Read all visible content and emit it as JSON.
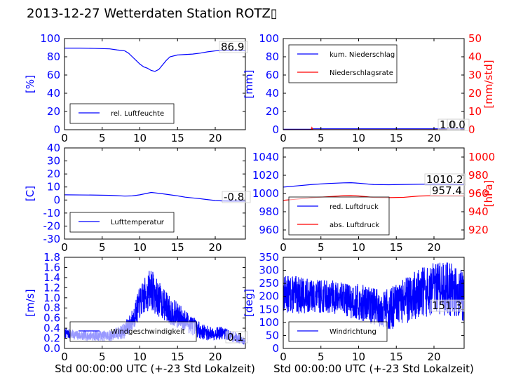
{
  "title": "2013-12-27 Wetterdaten Station ROTZ▯",
  "colors": {
    "blue": "#0000ff",
    "red": "#ff0000",
    "black": "#000000"
  },
  "chart_data": [
    {
      "type": "line",
      "ylabel": "[%]",
      "xlim": [
        0,
        24
      ],
      "ylim": [
        0,
        100
      ],
      "xticks": [
        0,
        5,
        10,
        15,
        20
      ],
      "yticks": [
        0,
        20,
        40,
        60,
        80,
        100
      ],
      "legend": "lower-left",
      "annotation": "86.9",
      "series": [
        {
          "name": "rel. Luftfeuchte",
          "color": "#0000ff",
          "x": [
            0,
            2,
            4,
            6,
            7,
            8,
            8.5,
            9,
            9.5,
            10,
            10.5,
            11,
            11.5,
            12,
            12.5,
            13,
            13.5,
            14,
            15,
            16,
            17,
            18,
            19,
            20,
            21,
            22,
            23,
            24
          ],
          "y": [
            89.5,
            89.5,
            89.2,
            88.7,
            87.5,
            86.5,
            84,
            80,
            76,
            72,
            69,
            67.5,
            65,
            64,
            66,
            71,
            76,
            80,
            82,
            82.5,
            83,
            84,
            85.5,
            86.5,
            87,
            87.2,
            87,
            86.9
          ]
        }
      ]
    },
    {
      "type": "line",
      "ylabel": "[mm]",
      "y2label": "[mm/std]",
      "xlim": [
        0,
        24
      ],
      "ylim": [
        0,
        100
      ],
      "y2lim": [
        0,
        50
      ],
      "xticks": [
        0,
        5,
        10,
        15,
        20
      ],
      "yticks": [
        0,
        20,
        40,
        60,
        80,
        100
      ],
      "y2ticks": [
        0,
        10,
        20,
        30,
        40,
        50
      ],
      "legend": "upper-left",
      "annotations": [
        "1.0",
        "0.0"
      ],
      "series": [
        {
          "name": "kum. Niederschlag",
          "color": "#0000ff",
          "axis": "left",
          "x": [
            0,
            3.8,
            3.9,
            24
          ],
          "y": [
            0.5,
            0.5,
            1.0,
            1.0
          ]
        },
        {
          "name": "Niederschlagsrate",
          "color": "#ff0000",
          "axis": "right",
          "x": [
            0,
            3.7,
            3.8,
            3.9,
            4.0,
            24
          ],
          "y": [
            0,
            0,
            1.2,
            0.2,
            0,
            0
          ]
        }
      ]
    },
    {
      "type": "line",
      "ylabel": "[C]",
      "xlim": [
        0,
        24
      ],
      "ylim": [
        -30,
        40
      ],
      "xticks": [
        0,
        5,
        10,
        15,
        20
      ],
      "yticks": [
        -30,
        -20,
        -10,
        0,
        10,
        20,
        30,
        40
      ],
      "legend": "lower-left",
      "annotation": "-0.8",
      "series": [
        {
          "name": "Lufttemperatur",
          "color": "#0000ff",
          "x": [
            0,
            2,
            4,
            6,
            7,
            8,
            9,
            10,
            11,
            11.5,
            12,
            13,
            14,
            15,
            16,
            17,
            18,
            19,
            20,
            21,
            22,
            23,
            24
          ],
          "y": [
            4.0,
            3.9,
            3.8,
            3.6,
            3.3,
            3.0,
            3.2,
            4.0,
            5.2,
            5.8,
            5.5,
            4.8,
            4.0,
            3.2,
            2.2,
            1.6,
            1.0,
            0.3,
            -0.4,
            -0.7,
            -0.8,
            -0.8,
            -0.8
          ]
        }
      ]
    },
    {
      "type": "line",
      "ylabel": "",
      "y2label": "[hPa]",
      "xlim": [
        0,
        24
      ],
      "ylim": [
        950,
        1050
      ],
      "y2lim": [
        910,
        1010
      ],
      "xticks": [
        0,
        5,
        10,
        15,
        20
      ],
      "yticks": [
        960,
        980,
        1000,
        1020,
        1040
      ],
      "y2ticks": [
        920,
        940,
        960,
        980,
        1000
      ],
      "legend": "lower-left",
      "annotations": [
        "1010.2",
        "957.4"
      ],
      "series": [
        {
          "name": "red. Luftdruck",
          "color": "#0000ff",
          "axis": "left",
          "x": [
            0,
            2,
            4,
            6,
            8,
            9,
            10,
            12,
            14,
            16,
            18,
            20,
            22,
            24
          ],
          "y": [
            1007,
            1008.5,
            1010,
            1011,
            1011.7,
            1011.8,
            1011.3,
            1009.8,
            1009.6,
            1009.9,
            1010.2,
            1010.4,
            1010.2,
            1010.2
          ]
        },
        {
          "name": "abs. Luftdruck",
          "color": "#ff0000",
          "axis": "right",
          "x": [
            0,
            2,
            4,
            6,
            8,
            9,
            10,
            12,
            14,
            16,
            18,
            20,
            22,
            24
          ],
          "y": [
            952.5,
            954,
            955.5,
            956.5,
            957.6,
            957.7,
            957.3,
            955.7,
            955.5,
            955.8,
            957.2,
            957.6,
            957.4,
            957.4
          ]
        }
      ]
    },
    {
      "type": "line",
      "ylabel": "[m/s]",
      "xlabel": "Std 00:00:00 UTC (+-23 Std Lokalzeit)",
      "xlim": [
        0,
        24
      ],
      "ylim": [
        0,
        1.8
      ],
      "xticks": [
        0,
        5,
        10,
        15,
        20
      ],
      "yticks": [
        0,
        0.2,
        0.4,
        0.6,
        0.8,
        1.0,
        1.2,
        1.4,
        1.6,
        1.8
      ],
      "ytick_labels": [
        "0.0",
        "0.2",
        "0.4",
        "0.6",
        "0.8",
        "1.0",
        "1.2",
        "1.4",
        "1.6",
        "1.8"
      ],
      "legend": "lower-left",
      "annotation": "0.1",
      "series": [
        {
          "name": "Windgeschwindigkeit",
          "color": "#0000ff",
          "noisy": true,
          "seed": 7,
          "x": [
            0,
            2,
            4,
            6,
            7,
            8,
            9,
            10,
            11,
            11.5,
            12,
            13,
            14,
            15,
            16,
            17,
            18,
            19,
            20,
            21,
            22,
            23,
            24
          ],
          "y": [
            0.3,
            0.25,
            0.25,
            0.25,
            0.3,
            0.35,
            0.55,
            0.9,
            1.1,
            1.2,
            1.05,
            0.9,
            0.75,
            0.65,
            0.55,
            0.45,
            0.35,
            0.3,
            0.3,
            0.3,
            0.25,
            0.2,
            0.15
          ],
          "amp": [
            0.06,
            0.06,
            0.06,
            0.07,
            0.08,
            0.1,
            0.14,
            0.2,
            0.24,
            0.26,
            0.24,
            0.2,
            0.18,
            0.16,
            0.14,
            0.12,
            0.1,
            0.09,
            0.08,
            0.08,
            0.07,
            0.06,
            0.05
          ]
        }
      ]
    },
    {
      "type": "line",
      "ylabel": "[deg]",
      "xlabel": "Std 00:00:00 UTC (+-23 Std Lokalzeit)",
      "xlim": [
        0,
        24
      ],
      "ylim": [
        0,
        350
      ],
      "xticks": [
        0,
        5,
        10,
        15,
        20
      ],
      "yticks": [
        0,
        50,
        100,
        150,
        200,
        250,
        300,
        350
      ],
      "legend": "lower-left",
      "annotation": "151.3",
      "series": [
        {
          "name": "Windrichtung",
          "color": "#0000ff",
          "noisy": true,
          "seed": 13,
          "x": [
            0,
            2,
            4,
            6,
            8,
            10,
            12,
            14,
            15,
            16,
            18,
            20,
            22,
            24
          ],
          "y": [
            210,
            205,
            200,
            200,
            190,
            175,
            165,
            150,
            160,
            180,
            210,
            225,
            230,
            200
          ],
          "amp": [
            45,
            45,
            40,
            40,
            40,
            45,
            45,
            50,
            55,
            55,
            60,
            65,
            65,
            60
          ]
        }
      ]
    }
  ]
}
